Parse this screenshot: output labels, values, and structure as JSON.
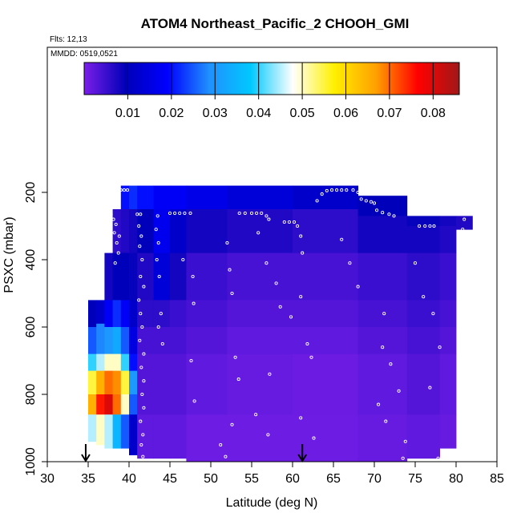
{
  "chart_data": {
    "type": "heatmap",
    "title": "ATOM4 Northeast_Pacific_2 CHOOH_GMI",
    "annotations": [
      "Flts: 12,13",
      "MMDD: 0519,0521"
    ],
    "xlabel": "Latitude (deg N)",
    "ylabel": "PSXC (mbar)",
    "xlim": [
      30,
      85
    ],
    "ylim": [
      1000,
      0
    ],
    "y_axis_inverted": true,
    "x_ticks": [
      30,
      35,
      40,
      45,
      50,
      55,
      60,
      65,
      70,
      75,
      80,
      85
    ],
    "y_ticks": [
      200,
      400,
      600,
      800,
      1000
    ],
    "grid": false,
    "colorbar": {
      "placement": "top-inside",
      "range": [
        0.0,
        0.086
      ],
      "ticks": [
        0.01,
        0.02,
        0.03,
        0.04,
        0.05,
        0.06,
        0.07,
        0.08
      ],
      "tick_labels": [
        "0.01",
        "0.02",
        "0.03",
        "0.04",
        "0.05",
        "0.06",
        "0.07",
        "0.08"
      ],
      "colors": [
        "#7a1fe8",
        "#0000b8",
        "#0000ff",
        "#2090ff",
        "#00c8ff",
        "#ffffff",
        "#fff000",
        "#ffa000",
        "#ff0000",
        "#a01818"
      ]
    },
    "markers": {
      "arrows_at_latitude": [
        34.7,
        61.2
      ]
    },
    "columns": [
      {
        "lat0": 35.0,
        "lat1": 36.0,
        "p_top": 520,
        "p_bot": 940,
        "segments": [
          [
            520,
            600,
            0.01
          ],
          [
            600,
            680,
            0.025
          ],
          [
            680,
            730,
            0.04
          ],
          [
            730,
            800,
            0.055
          ],
          [
            800,
            860,
            0.065
          ],
          [
            860,
            940,
            0.045
          ]
        ]
      },
      {
        "lat0": 36.0,
        "lat1": 37.0,
        "p_top": 520,
        "p_bot": 950,
        "segments": [
          [
            520,
            590,
            0.012
          ],
          [
            590,
            680,
            0.028
          ],
          [
            680,
            730,
            0.045
          ],
          [
            730,
            800,
            0.065
          ],
          [
            800,
            860,
            0.075
          ],
          [
            860,
            950,
            0.05
          ]
        ]
      },
      {
        "lat0": 37.0,
        "lat1": 38.0,
        "p_top": 380,
        "p_bot": 960,
        "segments": [
          [
            380,
            520,
            0.008
          ],
          [
            520,
            600,
            0.018
          ],
          [
            600,
            680,
            0.03
          ],
          [
            680,
            730,
            0.05
          ],
          [
            730,
            800,
            0.07
          ],
          [
            800,
            860,
            0.08
          ],
          [
            860,
            960,
            0.045
          ]
        ]
      },
      {
        "lat0": 38.0,
        "lat1": 39.0,
        "p_top": 250,
        "p_bot": 960,
        "segments": [
          [
            250,
            380,
            0.006
          ],
          [
            380,
            520,
            0.01
          ],
          [
            520,
            600,
            0.022
          ],
          [
            600,
            680,
            0.033
          ],
          [
            680,
            730,
            0.05
          ],
          [
            730,
            800,
            0.068
          ],
          [
            800,
            860,
            0.07
          ],
          [
            860,
            960,
            0.035
          ]
        ]
      },
      {
        "lat0": 39.0,
        "lat1": 40.0,
        "p_top": 180,
        "p_bot": 960,
        "segments": [
          [
            180,
            250,
            0.02
          ],
          [
            250,
            380,
            0.007
          ],
          [
            380,
            520,
            0.01
          ],
          [
            520,
            600,
            0.018
          ],
          [
            600,
            680,
            0.025
          ],
          [
            680,
            730,
            0.04
          ],
          [
            730,
            800,
            0.055
          ],
          [
            800,
            860,
            0.05
          ],
          [
            860,
            960,
            0.025
          ]
        ]
      },
      {
        "lat0": 40.0,
        "lat1": 41.0,
        "p_top": 180,
        "p_bot": 980,
        "segments": [
          [
            180,
            250,
            0.022
          ],
          [
            250,
            380,
            0.008
          ],
          [
            380,
            520,
            0.009
          ],
          [
            520,
            600,
            0.012
          ],
          [
            600,
            680,
            0.015
          ],
          [
            680,
            730,
            0.02
          ],
          [
            730,
            800,
            0.03
          ],
          [
            800,
            860,
            0.025
          ],
          [
            860,
            980,
            0.012
          ]
        ]
      },
      {
        "lat0": 41.0,
        "lat1": 43.0,
        "p_top": 180,
        "p_bot": 990,
        "segments": [
          [
            180,
            250,
            0.02
          ],
          [
            250,
            380,
            0.01
          ],
          [
            380,
            520,
            0.007
          ],
          [
            520,
            600,
            0.006
          ],
          [
            600,
            680,
            0.004
          ],
          [
            680,
            860,
            0.003
          ],
          [
            860,
            990,
            0.002
          ]
        ]
      },
      {
        "lat0": 43.0,
        "lat1": 45.0,
        "p_top": 180,
        "p_bot": 990,
        "segments": [
          [
            180,
            250,
            0.018
          ],
          [
            250,
            380,
            0.017
          ],
          [
            380,
            520,
            0.014
          ],
          [
            520,
            600,
            0.006
          ],
          [
            600,
            680,
            0.004
          ],
          [
            680,
            860,
            0.003
          ],
          [
            860,
            990,
            0.002
          ]
        ]
      },
      {
        "lat0": 45.0,
        "lat1": 47.0,
        "p_top": 180,
        "p_bot": 990,
        "segments": [
          [
            180,
            250,
            0.018
          ],
          [
            250,
            380,
            0.012
          ],
          [
            380,
            520,
            0.008
          ],
          [
            520,
            600,
            0.005
          ],
          [
            600,
            680,
            0.004
          ],
          [
            680,
            860,
            0.003
          ],
          [
            860,
            990,
            0.002
          ]
        ]
      },
      {
        "lat0": 47.0,
        "lat1": 52.0,
        "p_top": 180,
        "p_bot": 1000,
        "segments": [
          [
            180,
            250,
            0.016
          ],
          [
            250,
            380,
            0.008
          ],
          [
            380,
            520,
            0.005
          ],
          [
            520,
            600,
            0.004
          ],
          [
            600,
            680,
            0.003
          ],
          [
            680,
            860,
            0.002
          ],
          [
            860,
            1000,
            0.001
          ]
        ]
      },
      {
        "lat0": 52.0,
        "lat1": 60.0,
        "p_top": 180,
        "p_bot": 1000,
        "segments": [
          [
            180,
            250,
            0.014
          ],
          [
            250,
            380,
            0.007
          ],
          [
            380,
            520,
            0.004
          ],
          [
            520,
            600,
            0.003
          ],
          [
            600,
            680,
            0.002
          ],
          [
            680,
            860,
            0.0015
          ],
          [
            860,
            1000,
            0.001
          ]
        ]
      },
      {
        "lat0": 60.0,
        "lat1": 68.0,
        "p_top": 180,
        "p_bot": 1000,
        "segments": [
          [
            180,
            250,
            0.012
          ],
          [
            250,
            380,
            0.006
          ],
          [
            380,
            520,
            0.004
          ],
          [
            520,
            600,
            0.003
          ],
          [
            600,
            680,
            0.002
          ],
          [
            680,
            860,
            0.0012
          ],
          [
            860,
            1000,
            0.001
          ]
        ]
      },
      {
        "lat0": 68.0,
        "lat1": 74.0,
        "p_top": 210,
        "p_bot": 1000,
        "segments": [
          [
            210,
            270,
            0.01
          ],
          [
            270,
            380,
            0.008
          ],
          [
            380,
            520,
            0.005
          ],
          [
            520,
            600,
            0.004
          ],
          [
            600,
            680,
            0.003
          ],
          [
            680,
            860,
            0.002
          ],
          [
            860,
            1000,
            0.0015
          ]
        ]
      },
      {
        "lat0": 74.0,
        "lat1": 78.0,
        "p_top": 270,
        "p_bot": 990,
        "segments": [
          [
            270,
            300,
            0.009
          ],
          [
            300,
            380,
            0.008
          ],
          [
            380,
            520,
            0.006
          ],
          [
            520,
            600,
            0.005
          ],
          [
            600,
            680,
            0.004
          ],
          [
            680,
            860,
            0.003
          ],
          [
            860,
            990,
            0.002
          ]
        ]
      },
      {
        "lat0": 78.0,
        "lat1": 80.0,
        "p_top": 270,
        "p_bot": 960,
        "segments": [
          [
            270,
            300,
            0.008
          ],
          [
            300,
            380,
            0.007
          ],
          [
            380,
            520,
            0.005
          ],
          [
            520,
            600,
            0.004
          ],
          [
            600,
            680,
            0.003
          ],
          [
            680,
            860,
            0.002
          ],
          [
            860,
            960,
            0.0015
          ]
        ]
      },
      {
        "lat0": 80.0,
        "lat1": 82.0,
        "p_top": 270,
        "p_bot": 310,
        "segments": [
          [
            270,
            310,
            0.007
          ]
        ]
      }
    ],
    "white_markers": [
      [
        38.3,
        195
      ],
      [
        38.6,
        193
      ],
      [
        39.0,
        193
      ],
      [
        39.4,
        193
      ],
      [
        39.8,
        193
      ],
      [
        37.8,
        265
      ],
      [
        38.1,
        280
      ],
      [
        38.4,
        295
      ],
      [
        38.2,
        320
      ],
      [
        38.8,
        330
      ],
      [
        38.5,
        350
      ],
      [
        38.7,
        380
      ],
      [
        38.3,
        410
      ],
      [
        41.0,
        265
      ],
      [
        41.4,
        265
      ],
      [
        41.2,
        300
      ],
      [
        41.5,
        330
      ],
      [
        41.3,
        360
      ],
      [
        41.6,
        400
      ],
      [
        41.4,
        450
      ],
      [
        41.8,
        480
      ],
      [
        41.2,
        520
      ],
      [
        41.4,
        560
      ],
      [
        41.6,
        600
      ],
      [
        41.3,
        640
      ],
      [
        41.8,
        680
      ],
      [
        41.5,
        720
      ],
      [
        41.8,
        760
      ],
      [
        41.6,
        800
      ],
      [
        41.8,
        840
      ],
      [
        41.4,
        880
      ],
      [
        41.7,
        920
      ],
      [
        41.5,
        950
      ],
      [
        41.7,
        985
      ],
      [
        43.5,
        270
      ],
      [
        43.3,
        310
      ],
      [
        43.6,
        350
      ],
      [
        43.4,
        400
      ],
      [
        43.7,
        450
      ],
      [
        43.9,
        560
      ],
      [
        43.6,
        600
      ],
      [
        44.1,
        650
      ],
      [
        45.0,
        262
      ],
      [
        45.6,
        262
      ],
      [
        46.2,
        262
      ],
      [
        46.8,
        262
      ],
      [
        47.5,
        262
      ],
      [
        46.6,
        400
      ],
      [
        47.8,
        450
      ],
      [
        47.9,
        530
      ],
      [
        47.6,
        700
      ],
      [
        48.0,
        820
      ],
      [
        52.0,
        350
      ],
      [
        52.3,
        430
      ],
      [
        52.6,
        500
      ],
      [
        53.0,
        690
      ],
      [
        53.4,
        755
      ],
      [
        52.6,
        890
      ],
      [
        51.2,
        950
      ],
      [
        51.8,
        985
      ],
      [
        53.5,
        262
      ],
      [
        54.2,
        262
      ],
      [
        55.0,
        262
      ],
      [
        55.6,
        262
      ],
      [
        56.2,
        262
      ],
      [
        56.8,
        270
      ],
      [
        57.1,
        280
      ],
      [
        55.8,
        320
      ],
      [
        56.8,
        410
      ],
      [
        58.0,
        470
      ],
      [
        58.5,
        540
      ],
      [
        59.8,
        570
      ],
      [
        57.2,
        740
      ],
      [
        55.5,
        860
      ],
      [
        57.0,
        920
      ],
      [
        59.0,
        288
      ],
      [
        59.6,
        288
      ],
      [
        60.2,
        288
      ],
      [
        60.6,
        300
      ],
      [
        61.0,
        330
      ],
      [
        61.2,
        380
      ],
      [
        61.0,
        510
      ],
      [
        61.8,
        650
      ],
      [
        62.3,
        690
      ],
      [
        61.0,
        870
      ],
      [
        62.6,
        930
      ],
      [
        63.0,
        225
      ],
      [
        63.6,
        205
      ],
      [
        64.2,
        195
      ],
      [
        64.8,
        193
      ],
      [
        65.4,
        193
      ],
      [
        66.0,
        193
      ],
      [
        66.6,
        193
      ],
      [
        67.4,
        193
      ],
      [
        68.0,
        200
      ],
      [
        68.4,
        220
      ],
      [
        69.0,
        225
      ],
      [
        69.6,
        228
      ],
      [
        70.0,
        232
      ],
      [
        66.0,
        340
      ],
      [
        67.0,
        410
      ],
      [
        68.0,
        480
      ],
      [
        71.2,
        560
      ],
      [
        71.0,
        660
      ],
      [
        72.0,
        710
      ],
      [
        73.0,
        790
      ],
      [
        70.5,
        830
      ],
      [
        71.4,
        880
      ],
      [
        73.8,
        940
      ],
      [
        73.5,
        990
      ],
      [
        70.3,
        253
      ],
      [
        71.0,
        260
      ],
      [
        71.8,
        265
      ],
      [
        72.4,
        270
      ],
      [
        75.5,
        300
      ],
      [
        76.2,
        300
      ],
      [
        76.8,
        300
      ],
      [
        77.3,
        300
      ],
      [
        75.0,
        410
      ],
      [
        76.0,
        510
      ],
      [
        77.2,
        560
      ],
      [
        78.0,
        660
      ],
      [
        76.8,
        780
      ],
      [
        77.8,
        990
      ],
      [
        81.0,
        280
      ],
      [
        80.8,
        310
      ],
      [
        80.4,
        400
      ],
      [
        80.7,
        680
      ]
    ]
  }
}
